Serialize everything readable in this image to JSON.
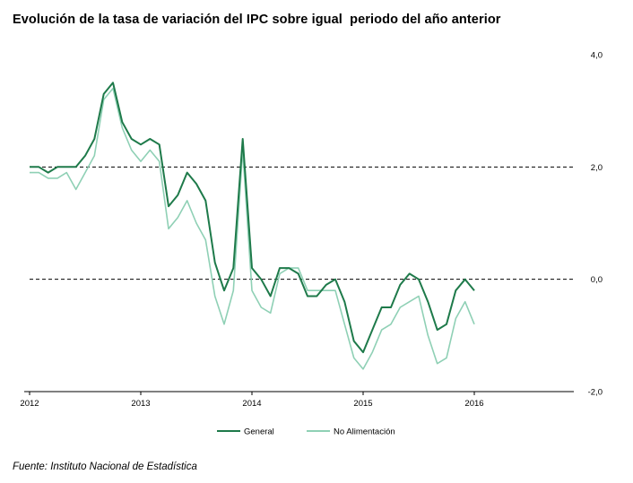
{
  "title": "Evolución de la tasa de variación del IPC sobre igual  periodo del año anterior",
  "source": "Fuente: Instituto Nacional de Estadística",
  "colors": {
    "general": "#1e7a4a",
    "no_alimentacion": "#8fd0b5",
    "axis": "#000000"
  },
  "chart_data": {
    "type": "line",
    "title": "Evolución de la tasa de variación del IPC sobre igual  periodo del año anterior",
    "xlabel": "",
    "ylabel": "",
    "x_tick_labels": [
      "2012",
      "2013",
      "2014",
      "2015",
      "2016"
    ],
    "y_tick_labels": [
      "4,0",
      "2,0",
      "0,0",
      "-2,0"
    ],
    "y_ticks": [
      4,
      2,
      0,
      -2
    ],
    "ylim": [
      -2,
      4
    ],
    "reference_lines": [
      2,
      0
    ],
    "legend_position": "bottom",
    "x_start": "2012-01",
    "series": [
      {
        "name": "General",
        "values": [
          2.0,
          2.0,
          1.9,
          2.0,
          2.0,
          2.0,
          2.2,
          2.5,
          3.3,
          3.5,
          2.8,
          2.5,
          2.4,
          2.5,
          2.4,
          1.3,
          1.5,
          1.9,
          1.7,
          1.4,
          0.3,
          -0.2,
          0.2,
          2.5,
          0.2,
          0.0,
          -0.3,
          0.2,
          0.2,
          0.1,
          -0.3,
          -0.3,
          -0.1,
          0.0,
          -0.4,
          -1.1,
          -1.3,
          -0.9,
          -0.5,
          -0.5,
          -0.1,
          0.1,
          0.0,
          -0.4,
          -0.9,
          -0.8,
          -0.2,
          0.0,
          -0.2
        ]
      },
      {
        "name": "No Alimentación",
        "values": [
          1.9,
          1.9,
          1.8,
          1.8,
          1.9,
          1.6,
          1.9,
          2.2,
          3.2,
          3.4,
          2.7,
          2.3,
          2.1,
          2.3,
          2.1,
          0.9,
          1.1,
          1.4,
          1.0,
          0.7,
          -0.3,
          -0.8,
          -0.2,
          2.3,
          -0.2,
          -0.5,
          -0.6,
          0.1,
          0.2,
          0.2,
          -0.2,
          -0.2,
          -0.2,
          -0.2,
          -0.8,
          -1.4,
          -1.6,
          -1.3,
          -0.9,
          -0.8,
          -0.5,
          -0.4,
          -0.3,
          -1.0,
          -1.5,
          -1.4,
          -0.7,
          -0.4,
          -0.8
        ]
      }
    ]
  }
}
